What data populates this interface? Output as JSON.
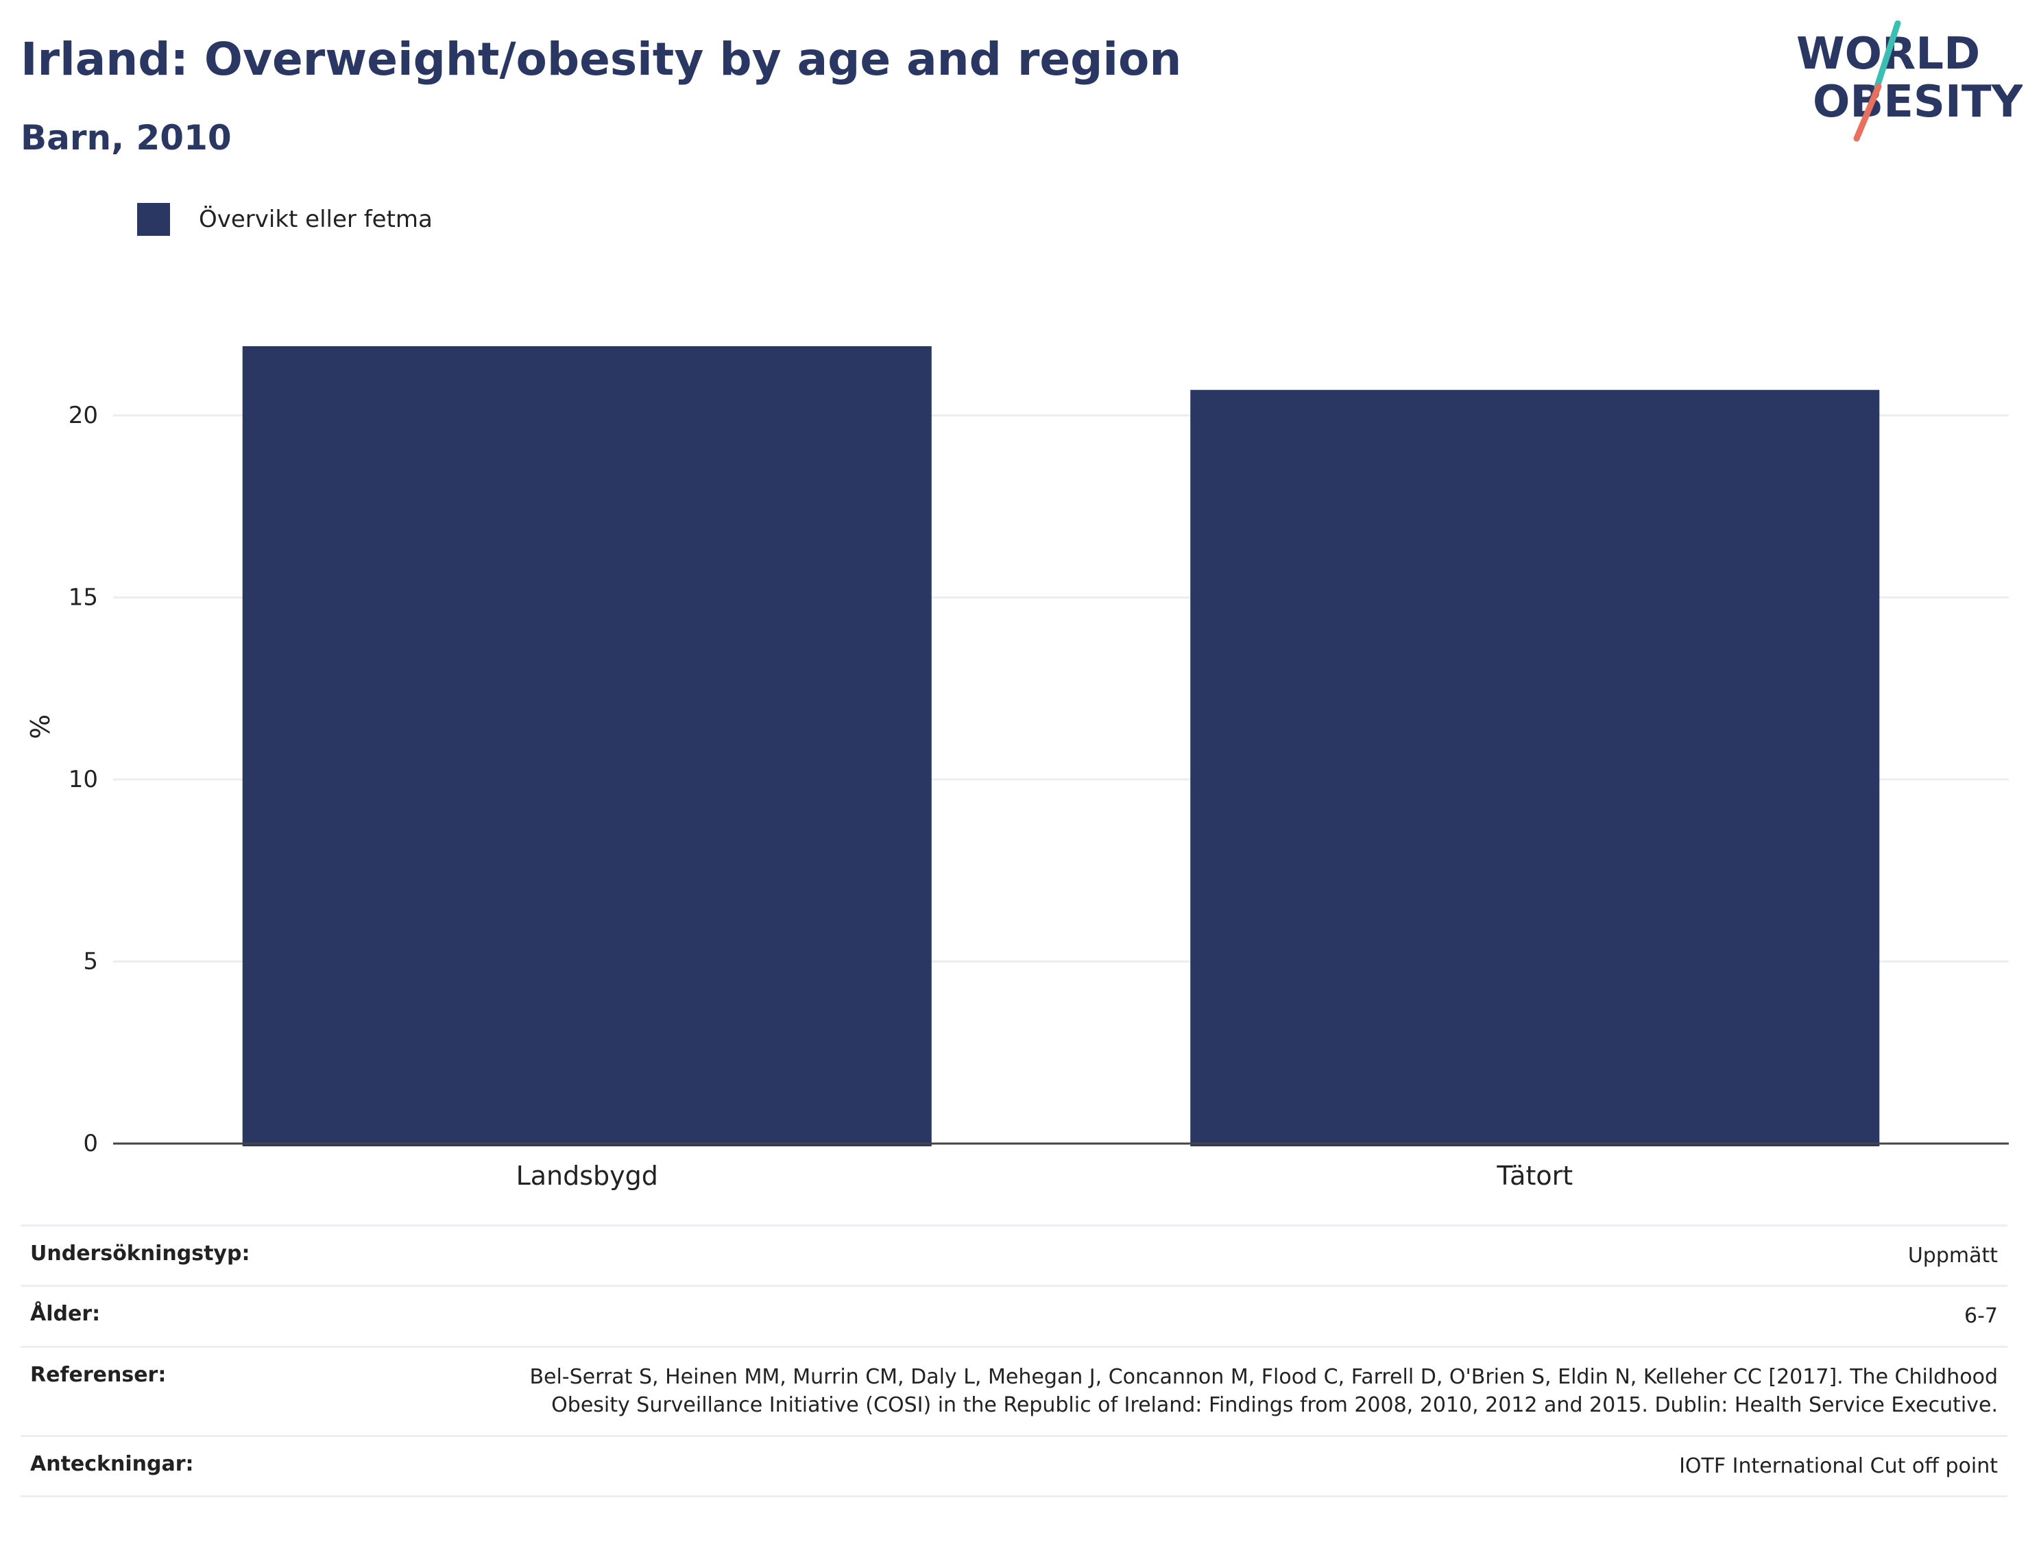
{
  "title": "Irland: Overweight/obesity by age and region",
  "subtitle": "Barn, 2010",
  "logo": {
    "line1": "WORLD",
    "line2": "OBESITY"
  },
  "colors": {
    "bar": "#2b3763",
    "title": "#2b3763",
    "grid": "#ebedf2",
    "axis": "#444444",
    "logo_teal": "#3bbfb3",
    "logo_coral": "#e8705f"
  },
  "legend": {
    "label": "Övervikt eller fetma"
  },
  "chart_data": {
    "type": "bar",
    "categories": [
      "Landsbygd",
      "Tätort"
    ],
    "series": [
      {
        "name": "Övervikt eller fetma",
        "values": [
          21.9,
          20.7
        ]
      }
    ],
    "ylabel": "%",
    "xlabel": "",
    "ylim": [
      0,
      23.5
    ],
    "yticks": [
      0,
      5,
      10,
      15,
      20
    ],
    "grid": true,
    "legend_position": "top-left"
  },
  "info": [
    {
      "label": "Undersökningstyp:",
      "value": "Uppmätt"
    },
    {
      "label": "Ålder:",
      "value": "6-7"
    },
    {
      "label": "Referenser:",
      "value": "Bel-Serrat S, Heinen MM, Murrin CM, Daly L, Mehegan J, Concannon M, Flood C, Farrell D, O'Brien S, Eldin N, Kelleher CC [2017]. The Childhood Obesity Surveillance Initiative (COSI) in the Republic of Ireland: Findings from 2008, 2010, 2012 and 2015. Dublin: Health Service Executive."
    },
    {
      "label": "Anteckningar:",
      "value": "IOTF International Cut off point"
    }
  ]
}
